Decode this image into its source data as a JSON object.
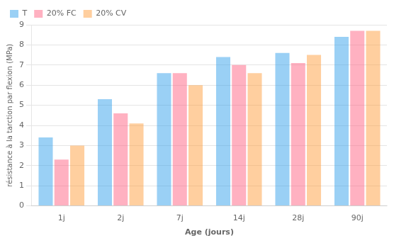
{
  "chart_data": {
    "type": "bar",
    "categories": [
      "1j",
      "2j",
      "7j",
      "14j",
      "28j",
      "90j"
    ],
    "series": [
      {
        "name": "T",
        "values": [
          3.4,
          5.3,
          6.6,
          7.4,
          7.6,
          8.4
        ]
      },
      {
        "name": "20% FC",
        "values": [
          2.3,
          4.6,
          6.6,
          7.0,
          7.1,
          8.7
        ]
      },
      {
        "name": "20% CV",
        "values": [
          3.0,
          4.1,
          6.0,
          6.6,
          7.5,
          8.7
        ]
      }
    ],
    "xlabel": "Age (jours)",
    "ylabel": "résistance à la tarction par flexion (MPa)",
    "ylim": [
      0,
      9
    ],
    "yticks": [
      0,
      1,
      2,
      3,
      4,
      5,
      6,
      7,
      8,
      9
    ],
    "grid": "y",
    "legend": "upper left"
  }
}
